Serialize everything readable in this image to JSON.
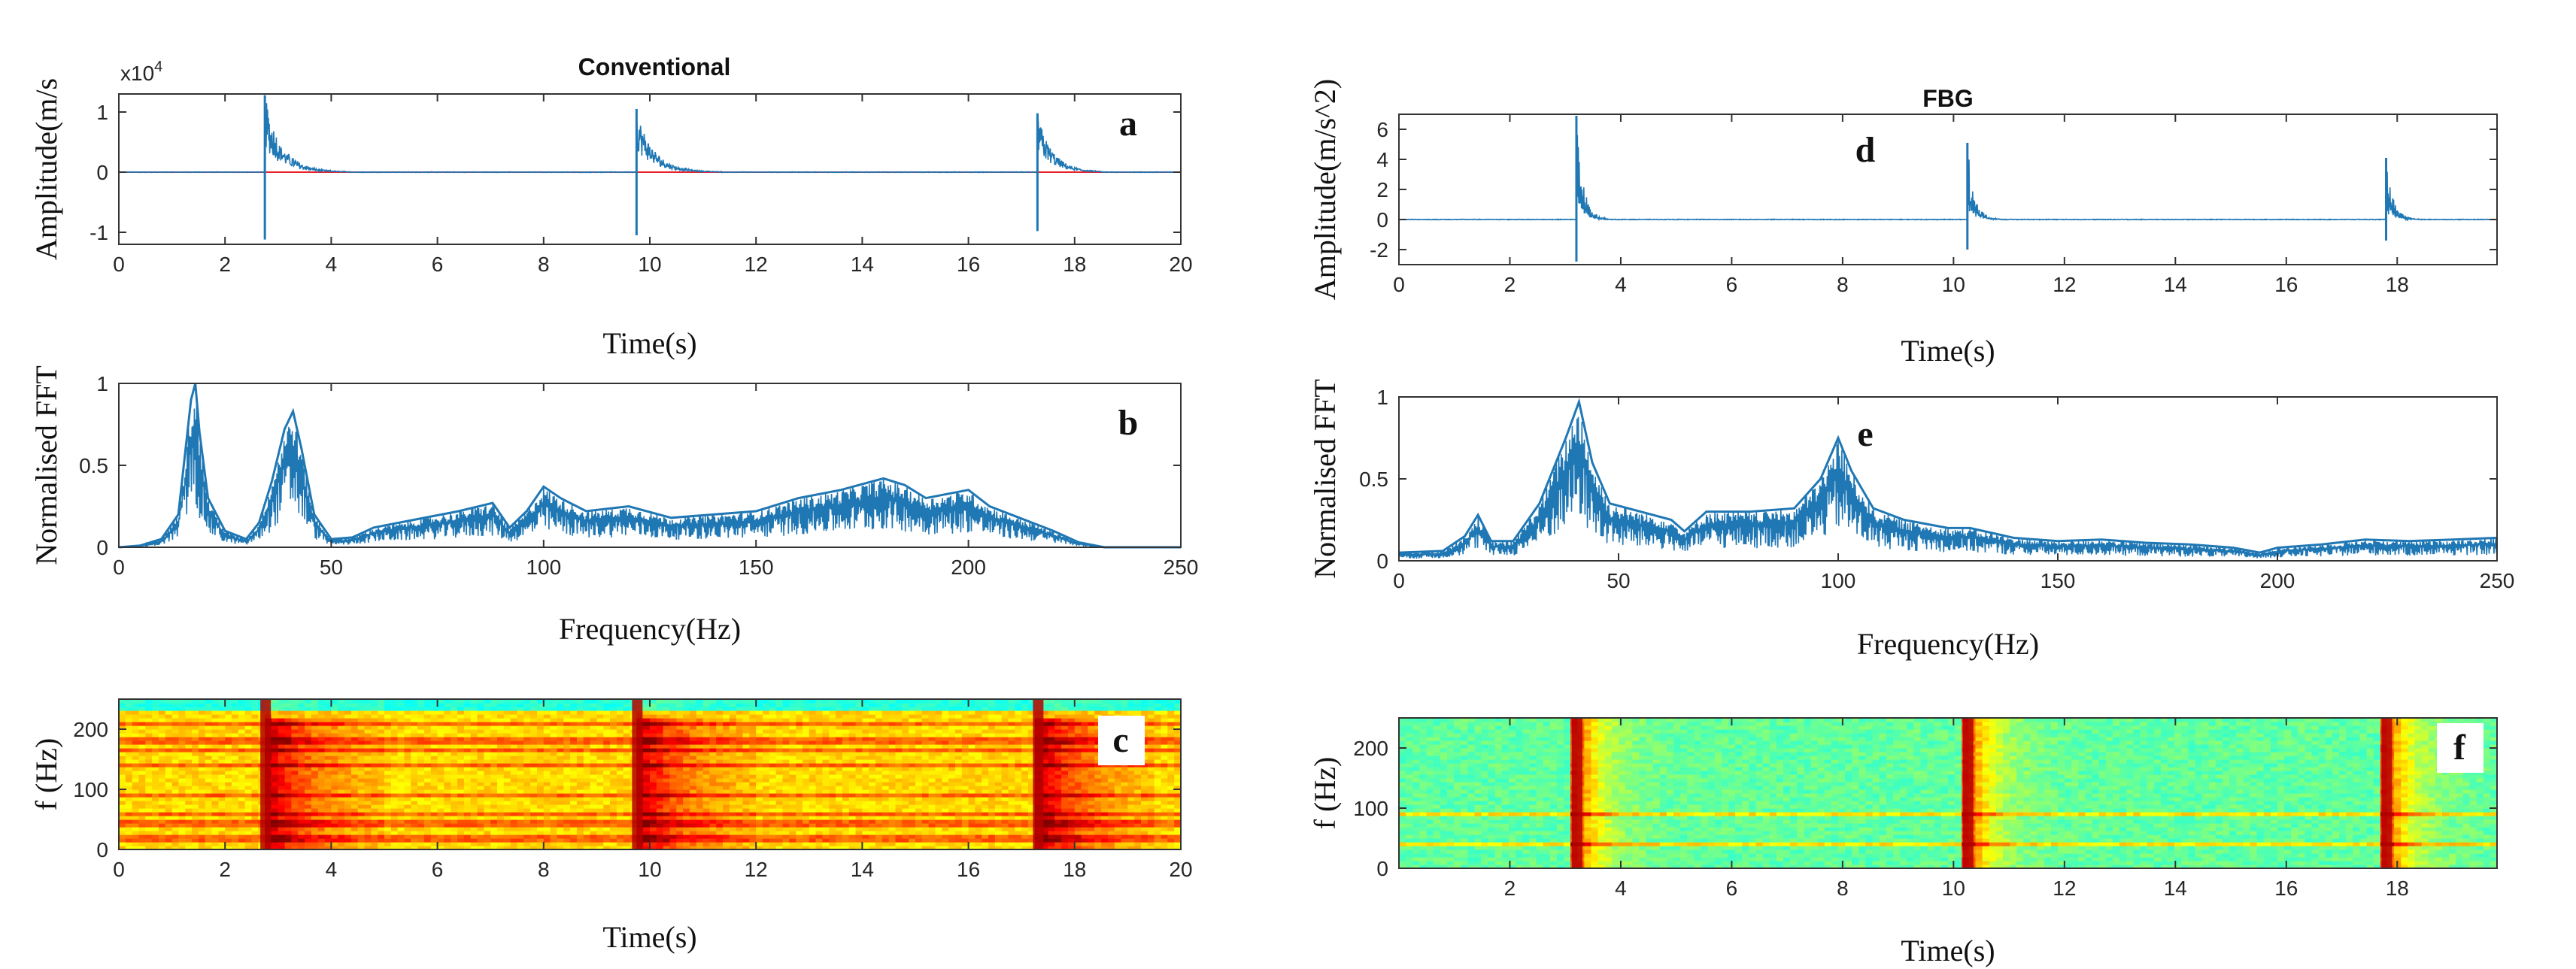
{
  "chart_data": [
    {
      "id": "a",
      "type": "line",
      "title": "Conventional",
      "panel_label": "a",
      "xlabel": "Time(s)",
      "ylabel": "Amplitude(m/s",
      "y_multiplier": "x10",
      "y_multiplier_exp": "4",
      "xlim": [
        0,
        20
      ],
      "ylim": [
        -1.2,
        1.3
      ],
      "xticks": [
        0,
        2,
        4,
        6,
        8,
        10,
        12,
        14,
        16,
        18,
        20
      ],
      "yticks": [
        -1,
        0,
        1
      ],
      "baseline": 0,
      "series_color": "#1f77b4",
      "baseline_color": "#e8202a",
      "bursts": [
        {
          "t": 2.75,
          "pos": 1.28,
          "neg": -1.12,
          "decay": 0.32,
          "tail": 1.6
        },
        {
          "t": 9.75,
          "pos": 1.05,
          "neg": -1.05,
          "decay": 0.32,
          "tail": 1.6
        },
        {
          "t": 17.3,
          "pos": 0.98,
          "neg": -0.98,
          "decay": 0.28,
          "tail": 1.2
        }
      ]
    },
    {
      "id": "b",
      "type": "line",
      "panel_label": "b",
      "xlabel": "Frequency(Hz)",
      "ylabel": "Normalised  FFT",
      "xlim": [
        0,
        250
      ],
      "ylim": [
        0,
        1
      ],
      "xticks": [
        0,
        50,
        100,
        150,
        200,
        250
      ],
      "yticks": [
        0,
        0.5,
        1
      ],
      "series_color": "#1f77b4",
      "envelope": [
        [
          0,
          0
        ],
        [
          5,
          0.01
        ],
        [
          10,
          0.05
        ],
        [
          14,
          0.2
        ],
        [
          17,
          0.9
        ],
        [
          18,
          1.0
        ],
        [
          19,
          0.7
        ],
        [
          21,
          0.3
        ],
        [
          25,
          0.1
        ],
        [
          30,
          0.05
        ],
        [
          33,
          0.15
        ],
        [
          36,
          0.4
        ],
        [
          39,
          0.72
        ],
        [
          41,
          0.83
        ],
        [
          43,
          0.6
        ],
        [
          46,
          0.2
        ],
        [
          50,
          0.05
        ],
        [
          55,
          0.06
        ],
        [
          60,
          0.12
        ],
        [
          70,
          0.17
        ],
        [
          80,
          0.22
        ],
        [
          88,
          0.27
        ],
        [
          92,
          0.12
        ],
        [
          96,
          0.22
        ],
        [
          100,
          0.37
        ],
        [
          104,
          0.3
        ],
        [
          110,
          0.22
        ],
        [
          120,
          0.25
        ],
        [
          130,
          0.18
        ],
        [
          140,
          0.2
        ],
        [
          150,
          0.22
        ],
        [
          160,
          0.3
        ],
        [
          170,
          0.35
        ],
        [
          180,
          0.42
        ],
        [
          185,
          0.38
        ],
        [
          190,
          0.3
        ],
        [
          200,
          0.35
        ],
        [
          205,
          0.25
        ],
        [
          212,
          0.18
        ],
        [
          220,
          0.1
        ],
        [
          226,
          0.03
        ],
        [
          232,
          0.0
        ],
        [
          250,
          0
        ]
      ]
    },
    {
      "id": "c",
      "type": "heatmap",
      "panel_label": "c",
      "xlabel": "Time(s)",
      "ylabel": "f (Hz)",
      "xlim": [
        0,
        20
      ],
      "ylim": [
        0,
        250
      ],
      "xticks": [
        0,
        2,
        4,
        6,
        8,
        10,
        12,
        14,
        16,
        18,
        20
      ],
      "yticks": [
        0,
        100,
        200
      ],
      "events": [
        2.75,
        9.75,
        17.3
      ],
      "bands": [
        20,
        45,
        60,
        90,
        140,
        165,
        180,
        210
      ],
      "colormap": "jet"
    },
    {
      "id": "d",
      "type": "line",
      "title": "FBG",
      "panel_label": "d",
      "xlabel": "Time(s)",
      "ylabel": "Amplitude(m/s^2)",
      "xlim": [
        0,
        19.8
      ],
      "ylim": [
        -3,
        7
      ],
      "xticks": [
        0,
        2,
        4,
        6,
        8,
        10,
        12,
        14,
        16,
        18
      ],
      "yticks": [
        -2,
        0,
        2,
        4,
        6
      ],
      "series_color": "#1f77b4",
      "bursts": [
        {
          "t": 3.2,
          "pos": 6.9,
          "neg": -2.8,
          "decay": 0.12,
          "tail": 0.6
        },
        {
          "t": 10.25,
          "pos": 5.1,
          "neg": -2.0,
          "decay": 0.12,
          "tail": 0.6
        },
        {
          "t": 17.8,
          "pos": 4.1,
          "neg": -1.4,
          "decay": 0.12,
          "tail": 0.6
        }
      ]
    },
    {
      "id": "e",
      "type": "line",
      "panel_label": "e",
      "xlabel": "Frequency(Hz)",
      "ylabel": "Normalised  FFT",
      "xlim": [
        0,
        250
      ],
      "ylim": [
        0,
        1
      ],
      "xticks": [
        0,
        50,
        100,
        150,
        200,
        250
      ],
      "yticks": [
        0,
        0.5,
        1
      ],
      "series_color": "#1f77b4",
      "envelope": [
        [
          0,
          0.05
        ],
        [
          10,
          0.06
        ],
        [
          15,
          0.15
        ],
        [
          18,
          0.28
        ],
        [
          21,
          0.12
        ],
        [
          26,
          0.12
        ],
        [
          32,
          0.35
        ],
        [
          38,
          0.75
        ],
        [
          41,
          0.97
        ],
        [
          44,
          0.6
        ],
        [
          48,
          0.35
        ],
        [
          55,
          0.3
        ],
        [
          62,
          0.25
        ],
        [
          65,
          0.18
        ],
        [
          70,
          0.3
        ],
        [
          80,
          0.3
        ],
        [
          90,
          0.32
        ],
        [
          96,
          0.5
        ],
        [
          100,
          0.75
        ],
        [
          103,
          0.55
        ],
        [
          108,
          0.32
        ],
        [
          115,
          0.25
        ],
        [
          125,
          0.2
        ],
        [
          130,
          0.2
        ],
        [
          140,
          0.14
        ],
        [
          150,
          0.12
        ],
        [
          160,
          0.13
        ],
        [
          170,
          0.11
        ],
        [
          180,
          0.1
        ],
        [
          190,
          0.08
        ],
        [
          196,
          0.05
        ],
        [
          200,
          0.08
        ],
        [
          210,
          0.1
        ],
        [
          220,
          0.13
        ],
        [
          230,
          0.12
        ],
        [
          240,
          0.13
        ],
        [
          250,
          0.14
        ]
      ]
    },
    {
      "id": "f",
      "type": "heatmap",
      "panel_label": "f",
      "xlabel": "Time(s)",
      "ylabel": "f (Hz)",
      "xlim": [
        0,
        19.8
      ],
      "ylim": [
        0,
        250
      ],
      "xticks": [
        2,
        4,
        6,
        8,
        10,
        12,
        14,
        16,
        18
      ],
      "yticks": [
        0,
        100,
        200
      ],
      "events": [
        3.2,
        10.25,
        17.8
      ],
      "bands": [
        40,
        90
      ],
      "colormap": "jet"
    }
  ]
}
